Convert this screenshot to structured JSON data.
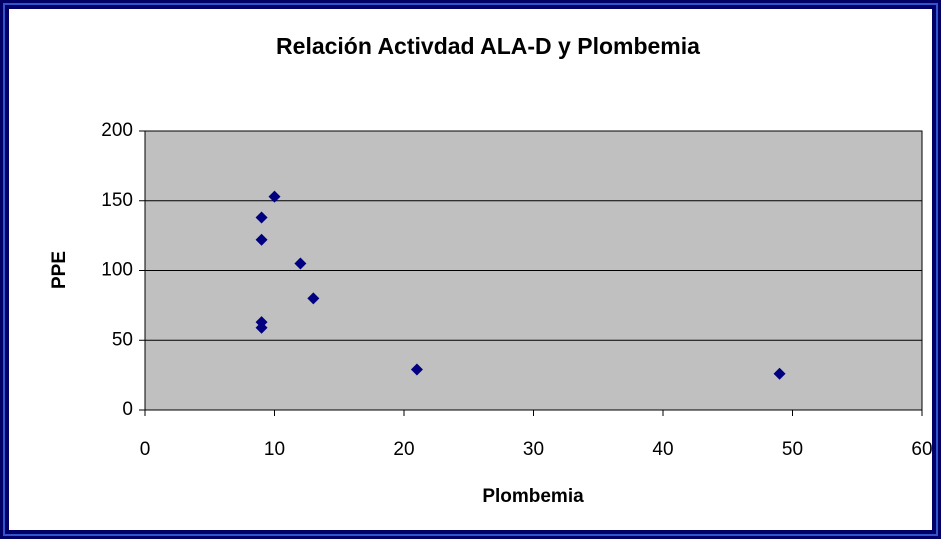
{
  "chart_data": {
    "type": "scatter",
    "title": "Relación Activdad ALA-D y Plombemia",
    "xlabel": "Plombemia",
    "ylabel": "PPE",
    "x": [
      10,
      9,
      9,
      12,
      13,
      9,
      9,
      21,
      49
    ],
    "values": [
      153,
      138,
      122,
      105,
      80,
      63,
      59,
      29,
      26
    ],
    "color": "#000080",
    "xlim": [
      0,
      60
    ],
    "xticks": [
      0,
      10,
      20,
      30,
      40,
      50,
      60
    ],
    "ylim": [
      0,
      200
    ],
    "yticks": [
      0,
      50,
      100,
      150,
      200
    ],
    "grid": true
  }
}
